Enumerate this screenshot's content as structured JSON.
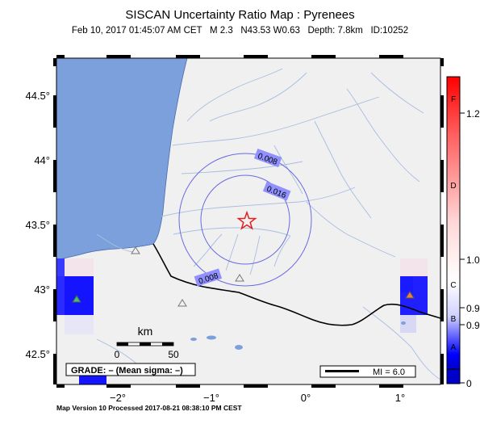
{
  "header": {
    "title": "SISCAN Uncertainty Ratio Map : Pyrenees",
    "event_date": "Feb 10, 2017 01:45:07 AM CET",
    "magnitude": "M 2.3",
    "location": "N43.53 W0.63",
    "depth": "Depth: 7.8km",
    "event_id": "ID:10252"
  },
  "map": {
    "lat_ticks": [
      "44.5°",
      "44°",
      "43.5°",
      "43°",
      "42.5°"
    ],
    "lon_ticks": [
      "−2°",
      "−1°",
      "0°",
      "1°"
    ],
    "contours": [
      "0.008",
      "0.016",
      "0.008"
    ],
    "scale_bar": {
      "unit": "km",
      "start": "0",
      "end": "50"
    },
    "grade_box": "GRADE: – (Mean sigma: –)",
    "mi_legend": "MI = 6.0",
    "colors": {
      "sea": "#7ba0dc",
      "land": "#f0f0f0",
      "river": "#a8bde0",
      "contour": "#6a6ae0",
      "epicenter": "#e02020"
    }
  },
  "colorbar": {
    "values": [
      "1.2",
      "1.0",
      "0.9",
      "0.9",
      "0"
    ],
    "grades": [
      "F",
      "D",
      "C",
      "B",
      "A"
    ]
  },
  "footer": "Map Version 10 Processed 2017-08-21 08:38:10 PM CEST"
}
